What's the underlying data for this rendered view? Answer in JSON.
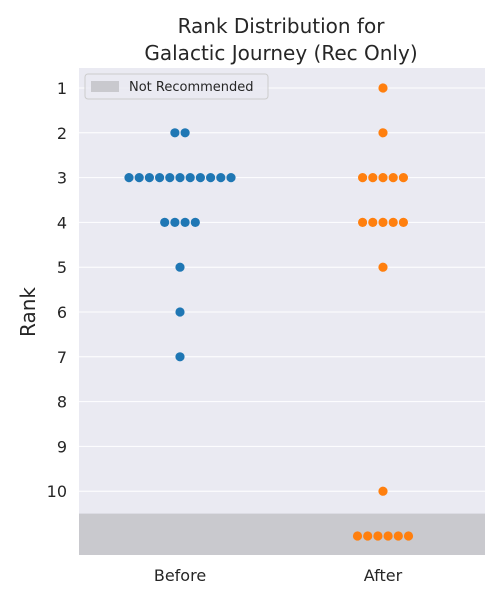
{
  "chart_data": {
    "type": "scatter",
    "subtype": "swarm",
    "title_lines": [
      "Rank Distribution for",
      "Galactic Journey (Rec Only)"
    ],
    "xlabel": "",
    "ylabel": "Rank",
    "categories": [
      "Before",
      "After"
    ],
    "y_ticks": [
      1,
      2,
      3,
      4,
      5,
      6,
      7,
      8,
      9,
      10
    ],
    "ylim": [
      0.5,
      11.5
    ],
    "y_inverted": true,
    "not_recommended_rank": 11,
    "legend": {
      "label": "Not Recommended",
      "placement": "upper-left"
    },
    "series": [
      {
        "name": "Before",
        "color": "#1f77b4",
        "counts": [
          {
            "rank": 2,
            "count": 2
          },
          {
            "rank": 3,
            "count": 11
          },
          {
            "rank": 4,
            "count": 4
          },
          {
            "rank": 5,
            "count": 1
          },
          {
            "rank": 6,
            "count": 1
          },
          {
            "rank": 7,
            "count": 1
          }
        ]
      },
      {
        "name": "After",
        "color": "#ff7f0e",
        "counts": [
          {
            "rank": 1,
            "count": 1
          },
          {
            "rank": 2,
            "count": 1
          },
          {
            "rank": 3,
            "count": 5
          },
          {
            "rank": 4,
            "count": 5
          },
          {
            "rank": 5,
            "count": 1
          },
          {
            "rank": 10,
            "count": 1
          },
          {
            "rank": 11,
            "count": 6
          }
        ]
      }
    ],
    "colors": {
      "background": "#eaeaf2",
      "grid": "#ffffff",
      "not_recommended_band": "#c9c9ce"
    }
  }
}
